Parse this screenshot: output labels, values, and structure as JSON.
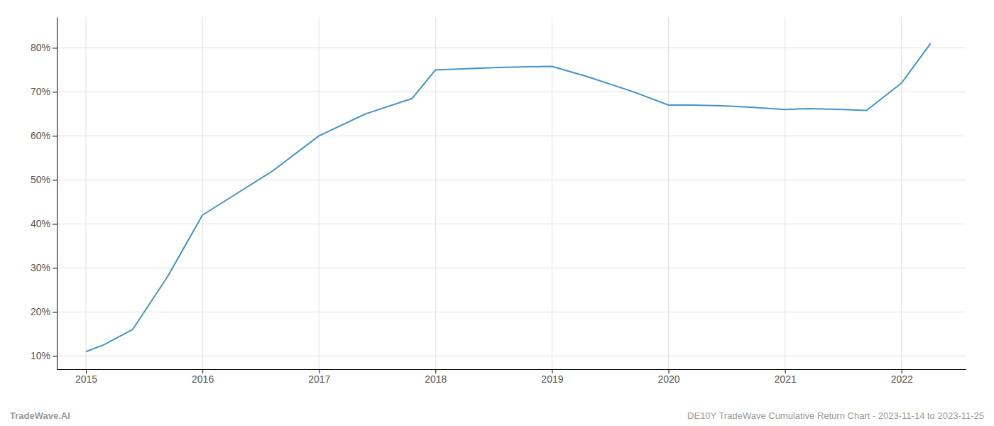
{
  "chart_data": {
    "type": "line",
    "x": [
      2015.0,
      2015.15,
      2015.4,
      2015.7,
      2016.0,
      2016.3,
      2016.6,
      2017.0,
      2017.4,
      2017.8,
      2018.0,
      2018.2,
      2018.5,
      2018.8,
      2019.0,
      2019.3,
      2019.7,
      2020.0,
      2020.2,
      2020.5,
      2020.7,
      2021.0,
      2021.2,
      2021.5,
      2021.7,
      2022.0,
      2022.25
    ],
    "values": [
      11.0,
      12.5,
      16.0,
      28.0,
      42.0,
      47.0,
      52.0,
      60.0,
      65.0,
      68.5,
      75.0,
      75.2,
      75.5,
      75.7,
      75.8,
      73.5,
      70.0,
      67.0,
      67.0,
      66.8,
      66.5,
      66.0,
      66.2,
      66.0,
      65.8,
      72.0,
      81.0
    ],
    "color": "#4393c9",
    "xlim": [
      2014.75,
      2022.55
    ],
    "ylim": [
      7,
      87
    ],
    "xticks": [
      2015,
      2016,
      2017,
      2018,
      2019,
      2020,
      2021,
      2022
    ],
    "yticks": [
      {
        "value": 10,
        "label": "10%"
      },
      {
        "value": 20,
        "label": "20%"
      },
      {
        "value": 30,
        "label": "30%"
      },
      {
        "value": 40,
        "label": "40%"
      },
      {
        "value": 50,
        "label": "50%"
      },
      {
        "value": 60,
        "label": "60%"
      },
      {
        "value": 70,
        "label": "70%"
      },
      {
        "value": 80,
        "label": "80%"
      }
    ],
    "grid": true,
    "annotations": [
      "TradeWave.AI",
      "DE10Y TradeWave Cumulative Return Chart - 2023-11-14 to 2023-11-25"
    ]
  }
}
